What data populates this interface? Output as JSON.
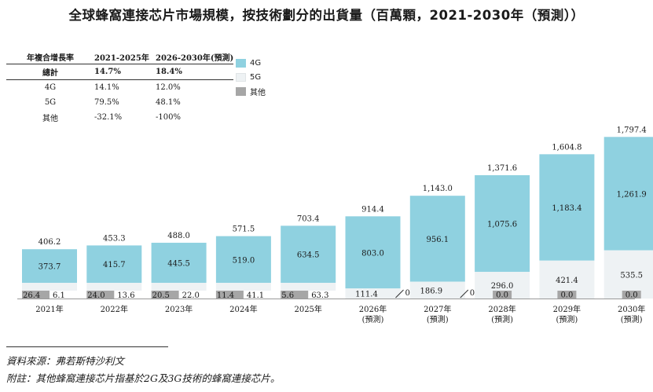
{
  "title": "全球蜂窩連接芯片市場規模，按技術劃分的出貨量（百萬顆，2021-2030年（預測））",
  "cagr_table": {
    "header": [
      "年複合增長率",
      "2021-2025年",
      "2026-2030年(預測)"
    ],
    "rows": [
      {
        "label": "總計",
        "a": "14.7%",
        "b": "18.4%"
      },
      {
        "label": "4G",
        "a": "14.1%",
        "b": "12.0%"
      },
      {
        "label": "5G",
        "a": "79.5%",
        "b": "48.1%"
      },
      {
        "label": "其他",
        "a": "-32.1%",
        "b": "-100%"
      }
    ]
  },
  "legend": [
    {
      "label": "4G",
      "color": "#8fd1e0"
    },
    {
      "label": "5G",
      "color": "#eef2f4"
    },
    {
      "label": "其他",
      "color": "#a6a6a6"
    }
  ],
  "chart_data": {
    "type": "bar",
    "stacked": true,
    "unit": "百萬顆",
    "categories": [
      [
        "2021年"
      ],
      [
        "2022年"
      ],
      [
        "2023年"
      ],
      [
        "2024年"
      ],
      [
        "2025年"
      ],
      [
        "2026年",
        "(預測)"
      ],
      [
        "2027年",
        "(預測)"
      ],
      [
        "2028年",
        "(預測)"
      ],
      [
        "2029年",
        "(預測)"
      ],
      [
        "2030年",
        "(預測)"
      ]
    ],
    "series": [
      {
        "name": "其他",
        "color": "#a6a6a6",
        "values": [
          26.4,
          24.0,
          20.5,
          11.4,
          5.6,
          0.0,
          0.0,
          0.0,
          0.0,
          0.0
        ],
        "labels": [
          "26.4",
          "24.0",
          "20.5",
          "11.4",
          "5.6",
          "0.0",
          "0.0",
          "0.0",
          "0.0",
          "0.0"
        ]
      },
      {
        "name": "5G",
        "color": "#eef2f4",
        "values": [
          6.1,
          13.6,
          22.0,
          41.1,
          63.3,
          111.4,
          186.9,
          296.0,
          421.4,
          535.5
        ],
        "labels": [
          "6.1",
          "13.6",
          "22.0",
          "41.1",
          "63.3",
          "111.4",
          "186.9",
          "296.0",
          "421.4",
          "535.5"
        ]
      },
      {
        "name": "4G",
        "color": "#8fd1e0",
        "values": [
          373.7,
          415.7,
          445.5,
          519.0,
          634.5,
          803.0,
          956.1,
          1075.6,
          1183.4,
          1261.9
        ],
        "labels": [
          "373.7",
          "415.7",
          "445.5",
          "519.0",
          "634.5",
          "803.0",
          "956.1",
          "1,075.6",
          "1,183.4",
          "1,261.9"
        ]
      }
    ],
    "totals": [
      406.2,
      453.3,
      488.0,
      571.5,
      703.4,
      914.4,
      1143.0,
      1371.6,
      1604.8,
      1797.4
    ],
    "total_labels": [
      "406.2",
      "453.3",
      "488.0",
      "571.5",
      "703.4",
      "914.4",
      "1,143.0",
      "1,371.6",
      "1,604.8",
      "1,797.4"
    ],
    "ylim": [
      0,
      1800
    ],
    "grid": false,
    "legend_position": "top-left"
  },
  "source": "資料來源：弗若斯特沙利文",
  "note": "附註：其他蜂窩連接芯片指基於2G及3G技術的蜂窩連接芯片。"
}
